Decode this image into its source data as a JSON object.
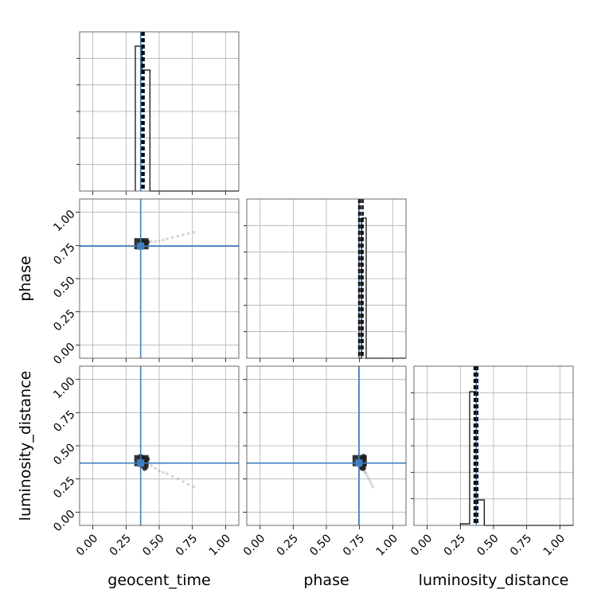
{
  "chart_data": {
    "type": "corner",
    "parameters": [
      "geocent_time",
      "phase",
      "luminosity_distance"
    ],
    "axis_range": [
      -0.1,
      1.1
    ],
    "tick_values": [
      0.0,
      0.25,
      0.5,
      0.75,
      1.0
    ],
    "tick_labels": [
      "0.00",
      "0.25",
      "0.50",
      "0.75",
      "1.00"
    ],
    "grid": true,
    "truths": {
      "geocent_time": 0.36,
      "phase": 0.745,
      "luminosity_distance": 0.37
    },
    "histograms": {
      "geocent_time": {
        "bin_edges": [
          0.32,
          0.37,
          0.43,
          0.49
        ],
        "heights": [
          0.91,
          0.76,
          0.0
        ],
        "quantiles": [
          0.37,
          0.375,
          0.385
        ]
      },
      "phase": {
        "bin_edges": [
          0.745,
          0.765,
          0.8
        ],
        "heights": [
          0.0,
          0.88
        ],
        "quantiles": [
          0.745,
          0.76,
          0.775
        ]
      },
      "luminosity_distance": {
        "bin_edges": [
          0.25,
          0.32,
          0.37,
          0.43
        ],
        "heights": [
          0.01,
          0.84,
          0.16
        ],
        "quantiles": [
          0.355,
          0.365,
          0.38
        ]
      }
    },
    "samples": [
      {
        "geocent_time": 0.36,
        "phase": 0.77,
        "luminosity_distance": 0.36
      },
      {
        "geocent_time": 0.38,
        "phase": 0.775,
        "luminosity_distance": 0.37
      },
      {
        "geocent_time": 0.4,
        "phase": 0.77,
        "luminosity_distance": 0.38
      },
      {
        "geocent_time": 0.37,
        "phase": 0.78,
        "luminosity_distance": 0.35
      },
      {
        "geocent_time": 0.39,
        "phase": 0.765,
        "luminosity_distance": 0.39
      },
      {
        "geocent_time": 0.41,
        "phase": 0.775,
        "luminosity_distance": 0.4
      },
      {
        "geocent_time": 0.35,
        "phase": 0.77,
        "luminosity_distance": 0.36
      },
      {
        "geocent_time": 0.38,
        "phase": 0.78,
        "luminosity_distance": 0.41
      },
      {
        "geocent_time": 0.4,
        "phase": 0.765,
        "luminosity_distance": 0.34
      },
      {
        "geocent_time": 0.42,
        "phase": 0.775,
        "luminosity_distance": 0.37
      },
      {
        "geocent_time": 0.36,
        "phase": 0.78,
        "luminosity_distance": 0.42
      },
      {
        "geocent_time": 0.39,
        "phase": 0.77,
        "luminosity_distance": 0.33
      },
      {
        "geocent_time": 0.44,
        "phase": 0.78,
        "luminosity_distance": 0.35
      },
      {
        "geocent_time": 0.47,
        "phase": 0.78,
        "luminosity_distance": 0.33
      },
      {
        "geocent_time": 0.5,
        "phase": 0.785,
        "luminosity_distance": 0.31
      },
      {
        "geocent_time": 0.53,
        "phase": 0.79,
        "luminosity_distance": 0.3
      },
      {
        "geocent_time": 0.56,
        "phase": 0.8,
        "luminosity_distance": 0.29
      },
      {
        "geocent_time": 0.6,
        "phase": 0.81,
        "luminosity_distance": 0.27
      },
      {
        "geocent_time": 0.64,
        "phase": 0.82,
        "luminosity_distance": 0.25
      },
      {
        "geocent_time": 0.68,
        "phase": 0.83,
        "luminosity_distance": 0.23
      },
      {
        "geocent_time": 0.72,
        "phase": 0.84,
        "luminosity_distance": 0.21
      },
      {
        "geocent_time": 0.76,
        "phase": 0.85,
        "luminosity_distance": 0.19
      }
    ]
  }
}
